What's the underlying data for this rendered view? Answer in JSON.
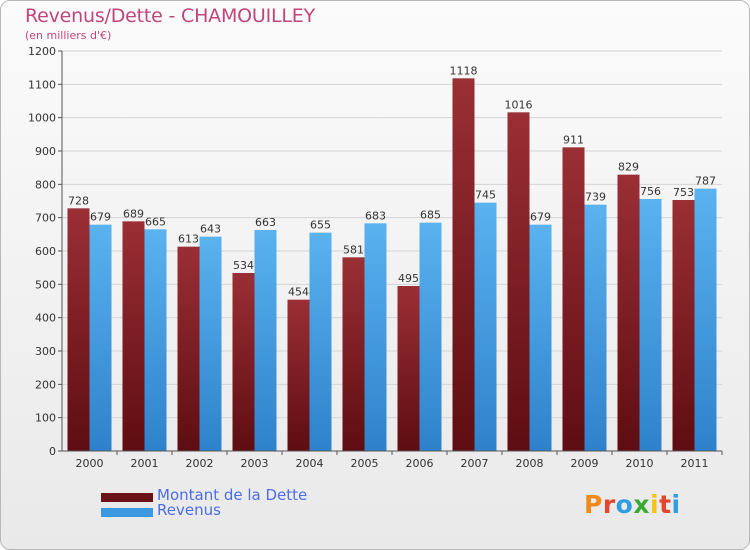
{
  "chart_data": {
    "type": "bar",
    "title": "Revenus/Dette - CHAMOUILLEY",
    "subtitle": "(en milliers d'€)",
    "categories": [
      "2000",
      "2001",
      "2002",
      "2003",
      "2004",
      "2005",
      "2006",
      "2007",
      "2008",
      "2009",
      "2010",
      "2011"
    ],
    "series": [
      {
        "name": "Montant de la Dette",
        "color": "#7a1b22",
        "values": [
          728,
          689,
          613,
          534,
          454,
          581,
          495,
          1118,
          1016,
          911,
          829,
          753
        ]
      },
      {
        "name": "Revenus",
        "color": "#3c98df",
        "values": [
          679,
          665,
          643,
          663,
          655,
          683,
          685,
          745,
          679,
          739,
          756,
          787
        ]
      }
    ],
    "ylim": [
      0,
      1200
    ],
    "yticks": [
      0,
      100,
      200,
      300,
      400,
      500,
      600,
      700,
      800,
      900,
      1000,
      1100,
      1200
    ],
    "grid": true,
    "legend_position": "bottom-left"
  },
  "logo": {
    "text": "Proxiti",
    "letters": [
      "P",
      "r",
      "o",
      "x",
      "i",
      "t",
      "i"
    ],
    "colors": [
      "#f08a1c",
      "#e3462c",
      "#2f9de0",
      "#3aaa35",
      "#f2c318",
      "#e3462c",
      "#2f9de0"
    ]
  }
}
